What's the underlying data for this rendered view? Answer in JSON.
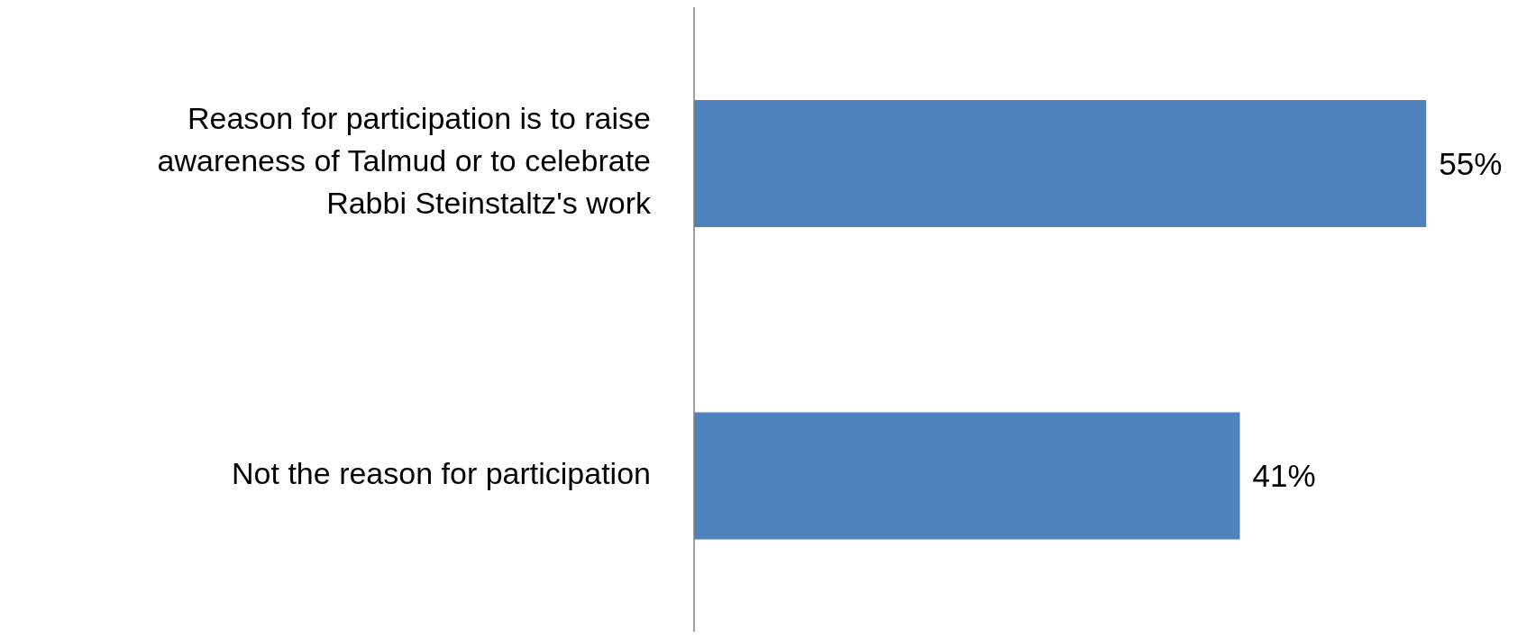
{
  "chart_data": {
    "type": "bar",
    "orientation": "horizontal",
    "categories": [
      "Reason for participation is to raise awareness of Talmud or to celebrate Rabbi Steinstaltz's work",
      "Not the reason for participation"
    ],
    "values": [
      55,
      41
    ],
    "color": "#4f81bd",
    "value_labels": [
      "55%",
      "41%"
    ]
  }
}
